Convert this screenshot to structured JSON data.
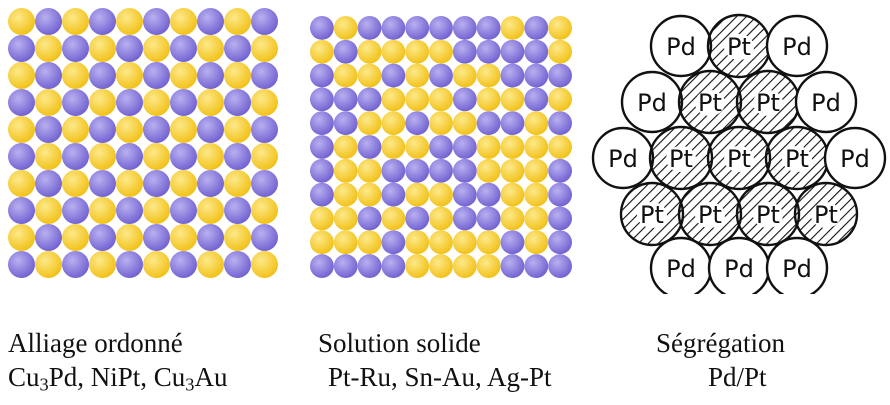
{
  "colors": {
    "yellow": "#f2c21b",
    "yellow_light": "#fde98a",
    "blue": "#7464d2",
    "blue_light": "#b8b0f0",
    "line": "#111111"
  },
  "panels": [
    {
      "name": "alliage-ordonne",
      "pattern": "checkerboard",
      "grid_cols": 10,
      "grid_rows": 10,
      "title": "Alliage ordonné",
      "examples": [
        {
          "base": "Cu",
          "sub": "3",
          "tail": "Pd, NiPt, "
        },
        {
          "base": "Cu",
          "sub": "3",
          "tail": "Au"
        }
      ]
    },
    {
      "name": "solution-solide",
      "pattern": "random",
      "grid_cols": 11,
      "grid_rows": 11,
      "title": "Solution solide",
      "examples_text": "Pt-Ru, Sn-Au, Ag-Pt"
    },
    {
      "name": "segregation",
      "pattern": "core-shell",
      "title": "Ségrégation",
      "examples_text": "Pd/Pt",
      "atom_labels": {
        "shell": "Pd",
        "core": "Pt"
      },
      "rows": [
        [
          "Pd",
          "Pt",
          "Pd"
        ],
        [
          "Pd",
          "Pt",
          "Pt",
          "Pd"
        ],
        [
          "Pd",
          "Pt",
          "Pt",
          "Pt",
          "Pd"
        ],
        [
          "Pt",
          "Pt",
          "Pt",
          "Pt"
        ],
        [
          "Pd",
          "Pd",
          "Pd"
        ]
      ]
    }
  ]
}
